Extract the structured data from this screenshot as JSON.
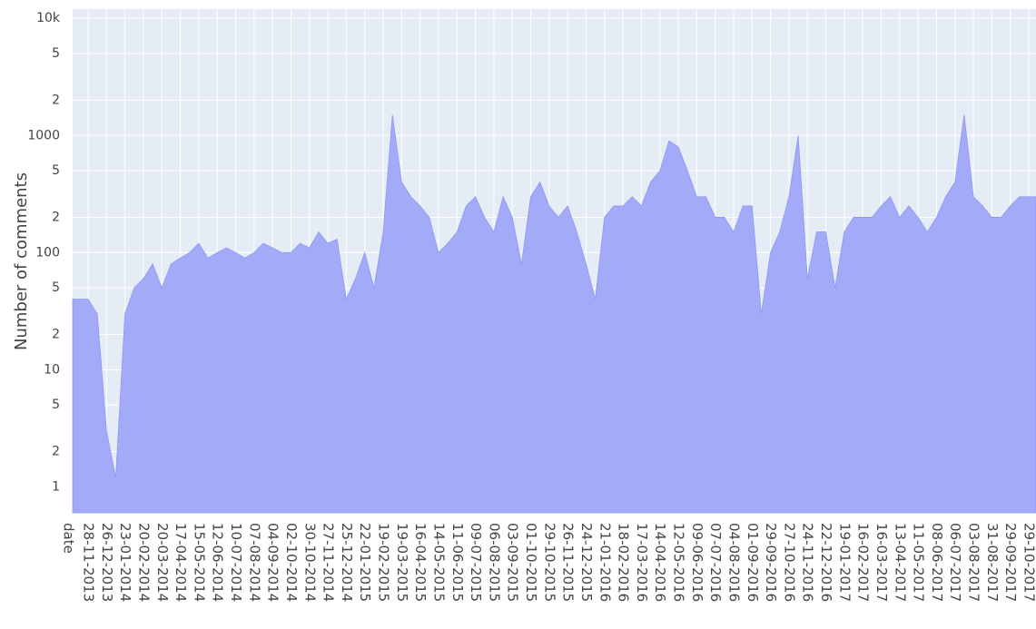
{
  "chart_data": {
    "type": "area",
    "y_label": "Number of comments",
    "x_label": "date",
    "categories": [
      "28-11-2013",
      null,
      "26-12-2013",
      null,
      "23-01-2014",
      null,
      "20-02-2014",
      null,
      "20-03-2014",
      null,
      "17-04-2014",
      null,
      "15-05-2014",
      null,
      "12-06-2014",
      null,
      "10-07-2014",
      null,
      "07-08-2014",
      null,
      "04-09-2014",
      null,
      "02-10-2014",
      null,
      "30-10-2014",
      null,
      "27-11-2014",
      null,
      "25-12-2014",
      null,
      "22-01-2015",
      null,
      "19-02-2015",
      null,
      "19-03-2015",
      null,
      "16-04-2015",
      null,
      "14-05-2015",
      null,
      "11-06-2015",
      null,
      "09-07-2015",
      null,
      "06-08-2015",
      null,
      "03-09-2015",
      null,
      "01-10-2015",
      null,
      "29-10-2015",
      null,
      "26-11-2015",
      null,
      "24-12-2015",
      null,
      "21-01-2016",
      null,
      "18-02-2016",
      null,
      "17-03-2016",
      null,
      "14-04-2016",
      null,
      "12-05-2016",
      null,
      "09-06-2016",
      null,
      "07-07-2016",
      null,
      "04-08-2016",
      null,
      "01-09-2016",
      null,
      "29-09-2016",
      null,
      "27-10-2016",
      null,
      "24-11-2016",
      null,
      "22-12-2016",
      null,
      "19-01-2017",
      null,
      "16-02-2017",
      null,
      "16-03-2017",
      null,
      "13-04-2017",
      null,
      "11-05-2017",
      null,
      "08-06-2017",
      null,
      "06-07-2017",
      null,
      "03-08-2017",
      null,
      "31-08-2017",
      null,
      "29-09-2017",
      null,
      "29-10-2017"
    ],
    "values": [
      40,
      30,
      3,
      1.2,
      30,
      50,
      60,
      80,
      50,
      80,
      90,
      100,
      120,
      90,
      100,
      110,
      100,
      90,
      100,
      120,
      110,
      100,
      100,
      120,
      110,
      150,
      120,
      130,
      40,
      60,
      100,
      50,
      150,
      1500,
      400,
      300,
      250,
      200,
      100,
      120,
      150,
      250,
      300,
      200,
      150,
      300,
      200,
      80,
      300,
      400,
      250,
      200,
      250,
      150,
      80,
      40,
      200,
      250,
      250,
      300,
      250,
      400,
      500,
      900,
      800,
      500,
      300,
      300,
      200,
      200,
      150,
      250,
      250,
      30,
      100,
      150,
      300,
      1000,
      60,
      150,
      150,
      50,
      150,
      200,
      200,
      200,
      250,
      300,
      200,
      250,
      200,
      150,
      200,
      300,
      400,
      1500,
      300,
      250,
      200,
      200,
      250,
      300,
      300
    ],
    "color": "#a3aaf7",
    "log_y": true,
    "grid": true,
    "ylim": [
      0.6,
      12000
    ],
    "yticks": [
      1,
      2,
      5,
      10,
      {
        "value": 20,
        "label": "2"
      },
      {
        "value": 50,
        "label": "5"
      },
      100,
      {
        "value": 200,
        "label": "2"
      },
      {
        "value": 500,
        "label": "5"
      },
      1000,
      {
        "value": 2000,
        "label": "2"
      },
      {
        "value": 5000,
        "label": "5"
      },
      {
        "value": 10000,
        "label": "10k"
      }
    ]
  }
}
